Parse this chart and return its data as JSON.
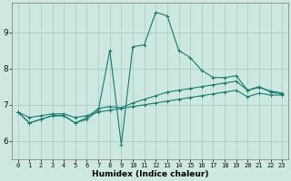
{
  "title": "",
  "xlabel": "Humidex (Indice chaleur)",
  "background_color": "#cce8e0",
  "grid_color": "#aad0c8",
  "line_color": "#1a7a6e",
  "xlim": [
    -0.5,
    23.5
  ],
  "ylim": [
    5.5,
    9.8
  ],
  "yticks": [
    6,
    7,
    8,
    9
  ],
  "xticks": [
    0,
    1,
    2,
    3,
    4,
    5,
    6,
    7,
    8,
    9,
    10,
    11,
    12,
    13,
    14,
    15,
    16,
    17,
    18,
    19,
    20,
    21,
    22,
    23
  ],
  "series": [
    [
      6.8,
      6.5,
      6.6,
      6.7,
      6.7,
      6.5,
      6.6,
      6.85,
      8.5,
      5.9,
      8.6,
      8.65,
      9.55,
      9.45,
      8.5,
      8.3,
      7.95,
      7.75,
      7.75,
      7.8,
      7.4,
      7.5,
      7.35,
      7.3
    ],
    [
      6.8,
      6.5,
      6.6,
      6.7,
      6.7,
      6.5,
      6.65,
      6.9,
      6.95,
      6.92,
      7.05,
      7.15,
      7.25,
      7.35,
      7.4,
      7.45,
      7.5,
      7.55,
      7.6,
      7.65,
      7.4,
      7.48,
      7.38,
      7.32
    ],
    [
      6.8,
      6.65,
      6.7,
      6.75,
      6.75,
      6.65,
      6.7,
      6.8,
      6.85,
      6.9,
      6.95,
      7.0,
      7.05,
      7.1,
      7.15,
      7.2,
      7.25,
      7.3,
      7.35,
      7.4,
      7.22,
      7.32,
      7.27,
      7.27
    ]
  ]
}
